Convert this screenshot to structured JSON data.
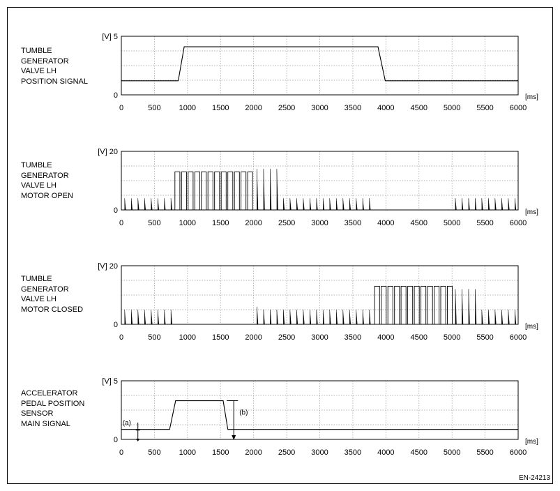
{
  "figure_id": "EN-24213",
  "chart_data": [
    {
      "type": "line",
      "side_label": [
        "TUMBLE",
        "GENERATOR",
        "VALVE LH",
        "POSITION SIGNAL"
      ],
      "ylabel": "[V]",
      "y_ticks": [
        "0",
        "5"
      ],
      "ylim": [
        0,
        5
      ],
      "xlabel": "[ms]",
      "xlim": [
        0,
        6000
      ],
      "x_ticks": [
        "0",
        "500",
        "1000",
        "1500",
        "2000",
        "2500",
        "3000",
        "3500",
        "4000",
        "4500",
        "5000",
        "5500",
        "6000"
      ],
      "grid": true,
      "series": [
        {
          "kind": "polyline",
          "x": [
            0,
            860,
            950,
            3880,
            3990,
            6000
          ],
          "y": [
            1.2,
            1.2,
            4.1,
            4.1,
            1.2,
            1.2
          ]
        }
      ]
    },
    {
      "type": "line",
      "side_label": [
        "TUMBLE",
        "GENERATOR",
        "VALVE LH",
        "MOTOR OPEN"
      ],
      "ylabel": "[V]",
      "y_ticks": [
        "0",
        "20"
      ],
      "ylim": [
        0,
        20
      ],
      "xlabel": "[ms]",
      "xlim": [
        0,
        6000
      ],
      "x_ticks": [
        "0",
        "500",
        "1000",
        "1500",
        "2000",
        "2500",
        "3000",
        "3500",
        "4000",
        "4500",
        "5000",
        "5500",
        "6000"
      ],
      "grid": true,
      "series": [
        {
          "kind": "spikes",
          "height": 4,
          "x": [
            50,
            150,
            250,
            350,
            450,
            550,
            650,
            750,
            2450,
            2550,
            2650,
            2750,
            2850,
            2950,
            3050,
            3150,
            3250,
            3350,
            3450,
            3550,
            3650,
            3750,
            5050,
            5150,
            5250,
            5350,
            5450,
            5550,
            5650,
            5750,
            5850,
            5950
          ]
        },
        {
          "kind": "pulses",
          "height": 13,
          "width": 75,
          "start": [
            810,
            910,
            1010,
            1110,
            1210,
            1310,
            1410,
            1510,
            1610,
            1710,
            1810,
            1910
          ]
        },
        {
          "kind": "spikes",
          "height": 14,
          "x": [
            2050,
            2150,
            2250,
            2350
          ]
        }
      ]
    },
    {
      "type": "line",
      "side_label": [
        "TUMBLE",
        "GENERATOR",
        "VALVE LH",
        "MOTOR CLOSED"
      ],
      "ylabel": "[V]",
      "y_ticks": [
        "0",
        "20"
      ],
      "ylim": [
        0,
        20
      ],
      "xlabel": "[ms]",
      "xlim": [
        0,
        6000
      ],
      "x_ticks": [
        "0",
        "500",
        "1000",
        "1500",
        "2000",
        "2500",
        "3000",
        "3500",
        "4000",
        "4500",
        "5000",
        "5500",
        "6000"
      ],
      "grid": true,
      "series": [
        {
          "kind": "spikes",
          "height": 5,
          "x": [
            50,
            150,
            250,
            350,
            450,
            550,
            650,
            750
          ]
        },
        {
          "kind": "spikes",
          "height": 6,
          "x": [
            2050
          ]
        },
        {
          "kind": "spikes",
          "height": 5,
          "x": [
            2150,
            2250,
            2350,
            2450,
            2550,
            2650,
            2750,
            2850,
            2950,
            3050,
            3150,
            3250,
            3350,
            3450,
            3550,
            3650,
            3750,
            5450,
            5550,
            5650,
            5750,
            5850,
            5950
          ]
        },
        {
          "kind": "pulses",
          "height": 13,
          "width": 75,
          "start": [
            3830,
            3930,
            4030,
            4130,
            4230,
            4330,
            4430,
            4530,
            4630,
            4730,
            4830,
            4930
          ]
        },
        {
          "kind": "spikes",
          "height": 12,
          "x": [
            5050,
            5150,
            5250,
            5350
          ]
        }
      ]
    },
    {
      "type": "line",
      "side_label": [
        "ACCELERATOR",
        "PEDAL POSITION",
        "SENSOR",
        "MAIN SIGNAL"
      ],
      "ylabel": "[V]",
      "y_ticks": [
        "0",
        "5"
      ],
      "ylim": [
        0,
        5
      ],
      "xlabel": "[ms]",
      "xlim": [
        0,
        6000
      ],
      "x_ticks": [
        "0",
        "500",
        "1000",
        "1500",
        "2000",
        "2500",
        "3000",
        "3500",
        "4000",
        "4500",
        "5000",
        "5500",
        "6000"
      ],
      "grid": true,
      "series": [
        {
          "kind": "polyline",
          "x": [
            0,
            730,
            820,
            1540,
            1610,
            6000
          ],
          "y": [
            0.85,
            0.85,
            3.3,
            3.3,
            0.85,
            0.85
          ]
        }
      ],
      "annotations": [
        {
          "label": "(a)",
          "x": 250,
          "y_from": 0,
          "y_to": 1.2
        },
        {
          "label": "(b)",
          "x": 1700,
          "y_from": 3.3,
          "y_to": 0
        }
      ]
    }
  ]
}
